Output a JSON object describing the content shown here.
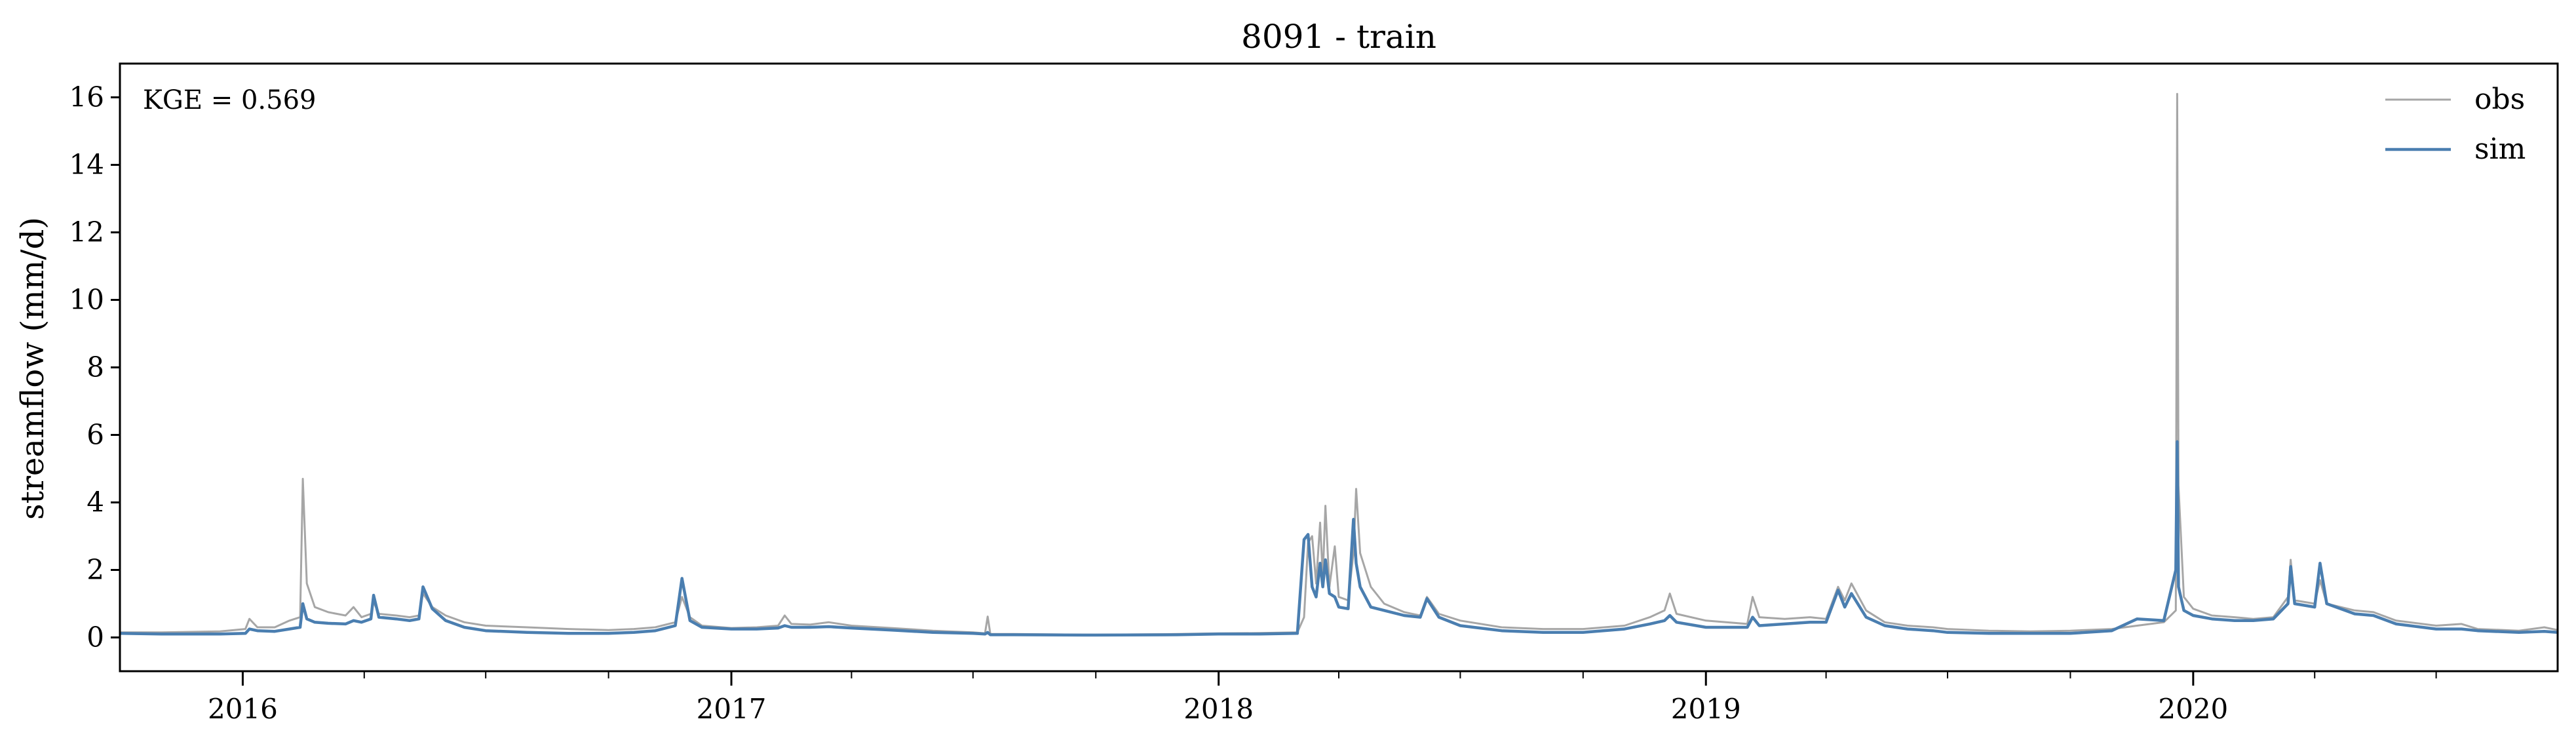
{
  "chart_data": {
    "type": "line",
    "title": "8091 - train",
    "xlabel": "",
    "ylabel": "streamflow (mm/d)",
    "annotation": "KGE = 0.569",
    "xlim": [
      "2015-10-01",
      "2020-09-30"
    ],
    "ylim": [
      -1,
      17
    ],
    "yticks": [
      0,
      2,
      4,
      6,
      8,
      10,
      12,
      14,
      16
    ],
    "xticks": [
      {
        "date": "2016-01-01",
        "label": "2016"
      },
      {
        "date": "2017-01-01",
        "label": "2017"
      },
      {
        "date": "2018-01-01",
        "label": "2018"
      },
      {
        "date": "2019-01-01",
        "label": "2019"
      },
      {
        "date": "2020-01-01",
        "label": "2020"
      }
    ],
    "grid": false,
    "legend_position": "top-right",
    "series": [
      {
        "name": "obs",
        "color": "#a6a6a6",
        "points": [
          [
            "2015-10-01",
            0.15
          ],
          [
            "2015-11-01",
            0.15
          ],
          [
            "2015-12-15",
            0.18
          ],
          [
            "2016-01-03",
            0.25
          ],
          [
            "2016-01-06",
            0.55
          ],
          [
            "2016-01-12",
            0.3
          ],
          [
            "2016-01-25",
            0.3
          ],
          [
            "2016-02-05",
            0.5
          ],
          [
            "2016-02-13",
            0.6
          ],
          [
            "2016-02-15",
            4.7
          ],
          [
            "2016-02-18",
            1.6
          ],
          [
            "2016-02-24",
            0.9
          ],
          [
            "2016-03-05",
            0.75
          ],
          [
            "2016-03-18",
            0.65
          ],
          [
            "2016-03-24",
            0.9
          ],
          [
            "2016-03-30",
            0.6
          ],
          [
            "2016-04-06",
            0.7
          ],
          [
            "2016-04-08",
            1.05
          ],
          [
            "2016-04-12",
            0.7
          ],
          [
            "2016-04-25",
            0.65
          ],
          [
            "2016-05-05",
            0.6
          ],
          [
            "2016-05-12",
            0.65
          ],
          [
            "2016-05-15",
            1.3
          ],
          [
            "2016-05-22",
            0.9
          ],
          [
            "2016-06-01",
            0.65
          ],
          [
            "2016-06-15",
            0.45
          ],
          [
            "2016-07-01",
            0.35
          ],
          [
            "2016-08-01",
            0.3
          ],
          [
            "2016-09-01",
            0.25
          ],
          [
            "2016-10-01",
            0.22
          ],
          [
            "2016-10-20",
            0.25
          ],
          [
            "2016-11-05",
            0.3
          ],
          [
            "2016-11-20",
            0.45
          ],
          [
            "2016-11-25",
            1.2
          ],
          [
            "2016-12-01",
            0.6
          ],
          [
            "2016-12-10",
            0.35
          ],
          [
            "2017-01-01",
            0.28
          ],
          [
            "2017-01-20",
            0.3
          ],
          [
            "2017-02-05",
            0.35
          ],
          [
            "2017-02-10",
            0.65
          ],
          [
            "2017-02-15",
            0.4
          ],
          [
            "2017-03-01",
            0.38
          ],
          [
            "2017-03-15",
            0.45
          ],
          [
            "2017-04-01",
            0.35
          ],
          [
            "2017-05-01",
            0.28
          ],
          [
            "2017-06-01",
            0.2
          ],
          [
            "2017-07-01",
            0.15
          ],
          [
            "2017-07-10",
            0.12
          ],
          [
            "2017-07-12",
            0.62
          ],
          [
            "2017-07-14",
            0.1
          ],
          [
            "2017-08-01",
            0.1
          ],
          [
            "2017-10-01",
            0.08
          ],
          [
            "2017-12-01",
            0.1
          ],
          [
            "2018-01-01",
            0.12
          ],
          [
            "2018-02-01",
            0.13
          ],
          [
            "2018-03-01",
            0.15
          ],
          [
            "2018-03-06",
            0.6
          ],
          [
            "2018-03-09",
            2.8
          ],
          [
            "2018-03-12",
            3.0
          ],
          [
            "2018-03-15",
            1.6
          ],
          [
            "2018-03-18",
            3.4
          ],
          [
            "2018-03-20",
            1.8
          ],
          [
            "2018-03-22",
            3.9
          ],
          [
            "2018-03-25",
            1.5
          ],
          [
            "2018-03-29",
            2.7
          ],
          [
            "2018-04-01",
            1.2
          ],
          [
            "2018-04-08",
            1.1
          ],
          [
            "2018-04-12",
            2.5
          ],
          [
            "2018-04-14",
            4.4
          ],
          [
            "2018-04-17",
            2.5
          ],
          [
            "2018-04-25",
            1.5
          ],
          [
            "2018-05-05",
            1.0
          ],
          [
            "2018-05-20",
            0.75
          ],
          [
            "2018-06-01",
            0.65
          ],
          [
            "2018-06-06",
            1.2
          ],
          [
            "2018-06-15",
            0.7
          ],
          [
            "2018-07-01",
            0.5
          ],
          [
            "2018-08-01",
            0.3
          ],
          [
            "2018-09-01",
            0.25
          ],
          [
            "2018-10-01",
            0.25
          ],
          [
            "2018-11-01",
            0.35
          ],
          [
            "2018-11-20",
            0.6
          ],
          [
            "2018-12-01",
            0.8
          ],
          [
            "2018-12-05",
            1.3
          ],
          [
            "2018-12-10",
            0.7
          ],
          [
            "2019-01-01",
            0.5
          ],
          [
            "2019-02-01",
            0.4
          ],
          [
            "2019-02-05",
            1.2
          ],
          [
            "2019-02-10",
            0.6
          ],
          [
            "2019-03-01",
            0.55
          ],
          [
            "2019-03-20",
            0.6
          ],
          [
            "2019-04-01",
            0.55
          ],
          [
            "2019-04-10",
            1.5
          ],
          [
            "2019-04-15",
            1.1
          ],
          [
            "2019-04-20",
            1.6
          ],
          [
            "2019-05-01",
            0.8
          ],
          [
            "2019-05-15",
            0.45
          ],
          [
            "2019-06-01",
            0.35
          ],
          [
            "2019-06-20",
            0.3
          ],
          [
            "2019-07-01",
            0.25
          ],
          [
            "2019-08-01",
            0.2
          ],
          [
            "2019-09-01",
            0.18
          ],
          [
            "2019-10-01",
            0.2
          ],
          [
            "2019-11-01",
            0.25
          ],
          [
            "2019-11-20",
            0.35
          ],
          [
            "2019-12-10",
            0.45
          ],
          [
            "2019-12-19",
            0.8
          ],
          [
            "2019-12-20",
            16.1
          ],
          [
            "2019-12-21",
            4.5
          ],
          [
            "2019-12-25",
            1.2
          ],
          [
            "2020-01-01",
            0.85
          ],
          [
            "2020-01-15",
            0.65
          ],
          [
            "2020-02-01",
            0.6
          ],
          [
            "2020-02-15",
            0.55
          ],
          [
            "2020-03-01",
            0.6
          ],
          [
            "2020-03-12",
            1.2
          ],
          [
            "2020-03-14",
            2.3
          ],
          [
            "2020-03-17",
            1.1
          ],
          [
            "2020-04-01",
            1.0
          ],
          [
            "2020-04-05",
            1.7
          ],
          [
            "2020-04-10",
            1.0
          ],
          [
            "2020-05-01",
            0.8
          ],
          [
            "2020-05-15",
            0.75
          ],
          [
            "2020-06-01",
            0.5
          ],
          [
            "2020-07-01",
            0.35
          ],
          [
            "2020-07-20",
            0.4
          ],
          [
            "2020-08-01",
            0.25
          ],
          [
            "2020-09-01",
            0.2
          ],
          [
            "2020-09-20",
            0.3
          ],
          [
            "2020-09-30",
            0.22
          ]
        ]
      },
      {
        "name": "sim",
        "color": "#4a7eb0",
        "points": [
          [
            "2015-10-01",
            0.12
          ],
          [
            "2015-11-01",
            0.1
          ],
          [
            "2015-12-15",
            0.1
          ],
          [
            "2016-01-03",
            0.12
          ],
          [
            "2016-01-06",
            0.25
          ],
          [
            "2016-01-12",
            0.2
          ],
          [
            "2016-01-25",
            0.18
          ],
          [
            "2016-02-05",
            0.25
          ],
          [
            "2016-02-13",
            0.3
          ],
          [
            "2016-02-15",
            1.0
          ],
          [
            "2016-02-18",
            0.55
          ],
          [
            "2016-02-24",
            0.45
          ],
          [
            "2016-03-05",
            0.42
          ],
          [
            "2016-03-18",
            0.4
          ],
          [
            "2016-03-24",
            0.5
          ],
          [
            "2016-03-30",
            0.45
          ],
          [
            "2016-04-06",
            0.55
          ],
          [
            "2016-04-08",
            1.25
          ],
          [
            "2016-04-12",
            0.6
          ],
          [
            "2016-04-25",
            0.55
          ],
          [
            "2016-05-05",
            0.5
          ],
          [
            "2016-05-12",
            0.55
          ],
          [
            "2016-05-15",
            1.5
          ],
          [
            "2016-05-22",
            0.85
          ],
          [
            "2016-06-01",
            0.5
          ],
          [
            "2016-06-15",
            0.3
          ],
          [
            "2016-07-01",
            0.2
          ],
          [
            "2016-08-01",
            0.15
          ],
          [
            "2016-09-01",
            0.12
          ],
          [
            "2016-10-01",
            0.12
          ],
          [
            "2016-10-20",
            0.15
          ],
          [
            "2016-11-05",
            0.2
          ],
          [
            "2016-11-20",
            0.35
          ],
          [
            "2016-11-25",
            1.75
          ],
          [
            "2016-12-01",
            0.5
          ],
          [
            "2016-12-10",
            0.3
          ],
          [
            "2017-01-01",
            0.25
          ],
          [
            "2017-01-20",
            0.25
          ],
          [
            "2017-02-05",
            0.28
          ],
          [
            "2017-02-10",
            0.35
          ],
          [
            "2017-02-15",
            0.3
          ],
          [
            "2017-03-01",
            0.3
          ],
          [
            "2017-03-15",
            0.32
          ],
          [
            "2017-04-01",
            0.28
          ],
          [
            "2017-05-01",
            0.22
          ],
          [
            "2017-06-01",
            0.15
          ],
          [
            "2017-07-01",
            0.12
          ],
          [
            "2017-07-10",
            0.1
          ],
          [
            "2017-07-12",
            0.15
          ],
          [
            "2017-07-14",
            0.08
          ],
          [
            "2017-08-01",
            0.08
          ],
          [
            "2017-10-01",
            0.07
          ],
          [
            "2017-12-01",
            0.08
          ],
          [
            "2018-01-01",
            0.1
          ],
          [
            "2018-02-01",
            0.1
          ],
          [
            "2018-03-01",
            0.12
          ],
          [
            "2018-03-06",
            2.9
          ],
          [
            "2018-03-09",
            3.05
          ],
          [
            "2018-03-12",
            1.5
          ],
          [
            "2018-03-15",
            1.2
          ],
          [
            "2018-03-18",
            2.2
          ],
          [
            "2018-03-20",
            1.5
          ],
          [
            "2018-03-22",
            2.3
          ],
          [
            "2018-03-25",
            1.3
          ],
          [
            "2018-03-29",
            1.2
          ],
          [
            "2018-04-01",
            0.9
          ],
          [
            "2018-04-08",
            0.85
          ],
          [
            "2018-04-12",
            3.5
          ],
          [
            "2018-04-14",
            2.2
          ],
          [
            "2018-04-17",
            1.5
          ],
          [
            "2018-04-25",
            0.9
          ],
          [
            "2018-05-05",
            0.8
          ],
          [
            "2018-05-20",
            0.65
          ],
          [
            "2018-06-01",
            0.6
          ],
          [
            "2018-06-06",
            1.15
          ],
          [
            "2018-06-15",
            0.6
          ],
          [
            "2018-07-01",
            0.35
          ],
          [
            "2018-08-01",
            0.2
          ],
          [
            "2018-09-01",
            0.15
          ],
          [
            "2018-10-01",
            0.15
          ],
          [
            "2018-11-01",
            0.25
          ],
          [
            "2018-11-20",
            0.4
          ],
          [
            "2018-12-01",
            0.5
          ],
          [
            "2018-12-05",
            0.65
          ],
          [
            "2018-12-10",
            0.45
          ],
          [
            "2019-01-01",
            0.3
          ],
          [
            "2019-02-01",
            0.3
          ],
          [
            "2019-02-05",
            0.6
          ],
          [
            "2019-02-10",
            0.35
          ],
          [
            "2019-03-01",
            0.4
          ],
          [
            "2019-03-20",
            0.45
          ],
          [
            "2019-04-01",
            0.45
          ],
          [
            "2019-04-10",
            1.4
          ],
          [
            "2019-04-15",
            0.9
          ],
          [
            "2019-04-20",
            1.3
          ],
          [
            "2019-05-01",
            0.6
          ],
          [
            "2019-05-15",
            0.35
          ],
          [
            "2019-06-01",
            0.25
          ],
          [
            "2019-06-20",
            0.2
          ],
          [
            "2019-07-01",
            0.15
          ],
          [
            "2019-08-01",
            0.12
          ],
          [
            "2019-09-01",
            0.12
          ],
          [
            "2019-10-01",
            0.12
          ],
          [
            "2019-11-01",
            0.2
          ],
          [
            "2019-11-20",
            0.55
          ],
          [
            "2019-12-10",
            0.5
          ],
          [
            "2019-12-19",
            2.0
          ],
          [
            "2019-12-20",
            5.8
          ],
          [
            "2019-12-21",
            1.5
          ],
          [
            "2019-12-25",
            0.8
          ],
          [
            "2020-01-01",
            0.65
          ],
          [
            "2020-01-15",
            0.55
          ],
          [
            "2020-02-01",
            0.5
          ],
          [
            "2020-02-15",
            0.5
          ],
          [
            "2020-03-01",
            0.55
          ],
          [
            "2020-03-12",
            1.0
          ],
          [
            "2020-03-14",
            2.1
          ],
          [
            "2020-03-17",
            1.0
          ],
          [
            "2020-04-01",
            0.9
          ],
          [
            "2020-04-05",
            2.2
          ],
          [
            "2020-04-10",
            1.0
          ],
          [
            "2020-05-01",
            0.7
          ],
          [
            "2020-05-15",
            0.65
          ],
          [
            "2020-06-01",
            0.4
          ],
          [
            "2020-07-01",
            0.25
          ],
          [
            "2020-07-20",
            0.25
          ],
          [
            "2020-08-01",
            0.2
          ],
          [
            "2020-09-01",
            0.15
          ],
          [
            "2020-09-20",
            0.18
          ],
          [
            "2020-09-30",
            0.15
          ]
        ]
      }
    ]
  }
}
